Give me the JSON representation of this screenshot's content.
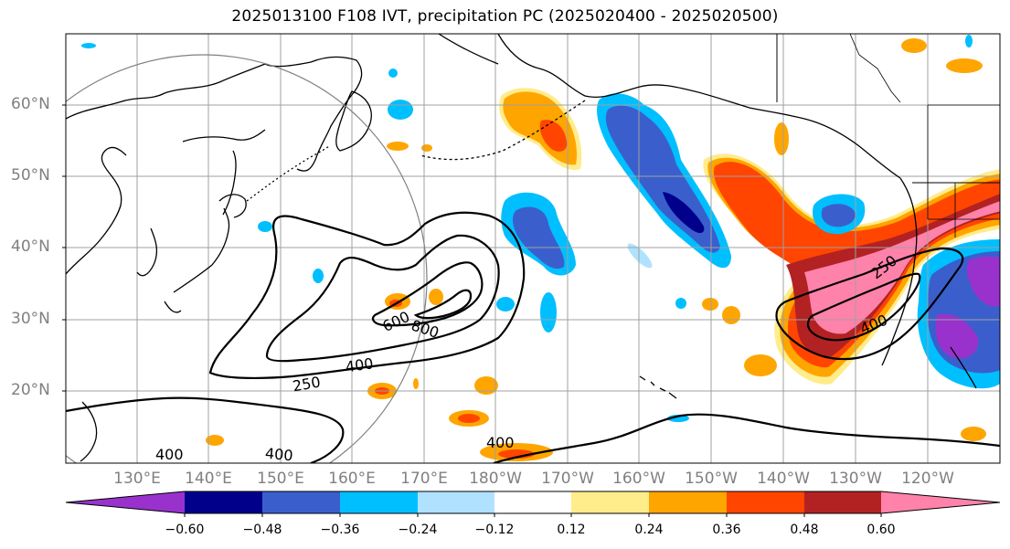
{
  "title": "2025013100 F108 IVT, precipitation PC (2025020400 - 2025020500)",
  "lat_labels": [
    "60°N",
    "50°N",
    "40°N",
    "30°N",
    "20°N"
  ],
  "lon_labels": [
    "130°E",
    "140°E",
    "150°E",
    "160°E",
    "170°E",
    "180°W",
    "170°W",
    "160°W",
    "150°W",
    "140°W",
    "130°W",
    "120°W"
  ],
  "colorbar": {
    "ticks": [
      "−0.60",
      "−0.48",
      "−0.36",
      "−0.24",
      "−0.12",
      "0.12",
      "0.24",
      "0.36",
      "0.48",
      "0.60"
    ],
    "colors": [
      "#9932cc",
      "#00008b",
      "#3a5fcd",
      "#00bfff",
      "#b0e2ff",
      "#ffffff",
      "#ffec8b",
      "#ffa500",
      "#ff4500",
      "#b22222",
      "#ff82ab"
    ]
  },
  "contour_labels": [
    "600",
    "800",
    "250",
    "400",
    "400",
    "400",
    "400",
    "250",
    "400"
  ],
  "colors": {
    "land_line": "#000000",
    "grid": "#a0a0a0",
    "ivt_contour": "#000000",
    "circle": "#808080"
  }
}
